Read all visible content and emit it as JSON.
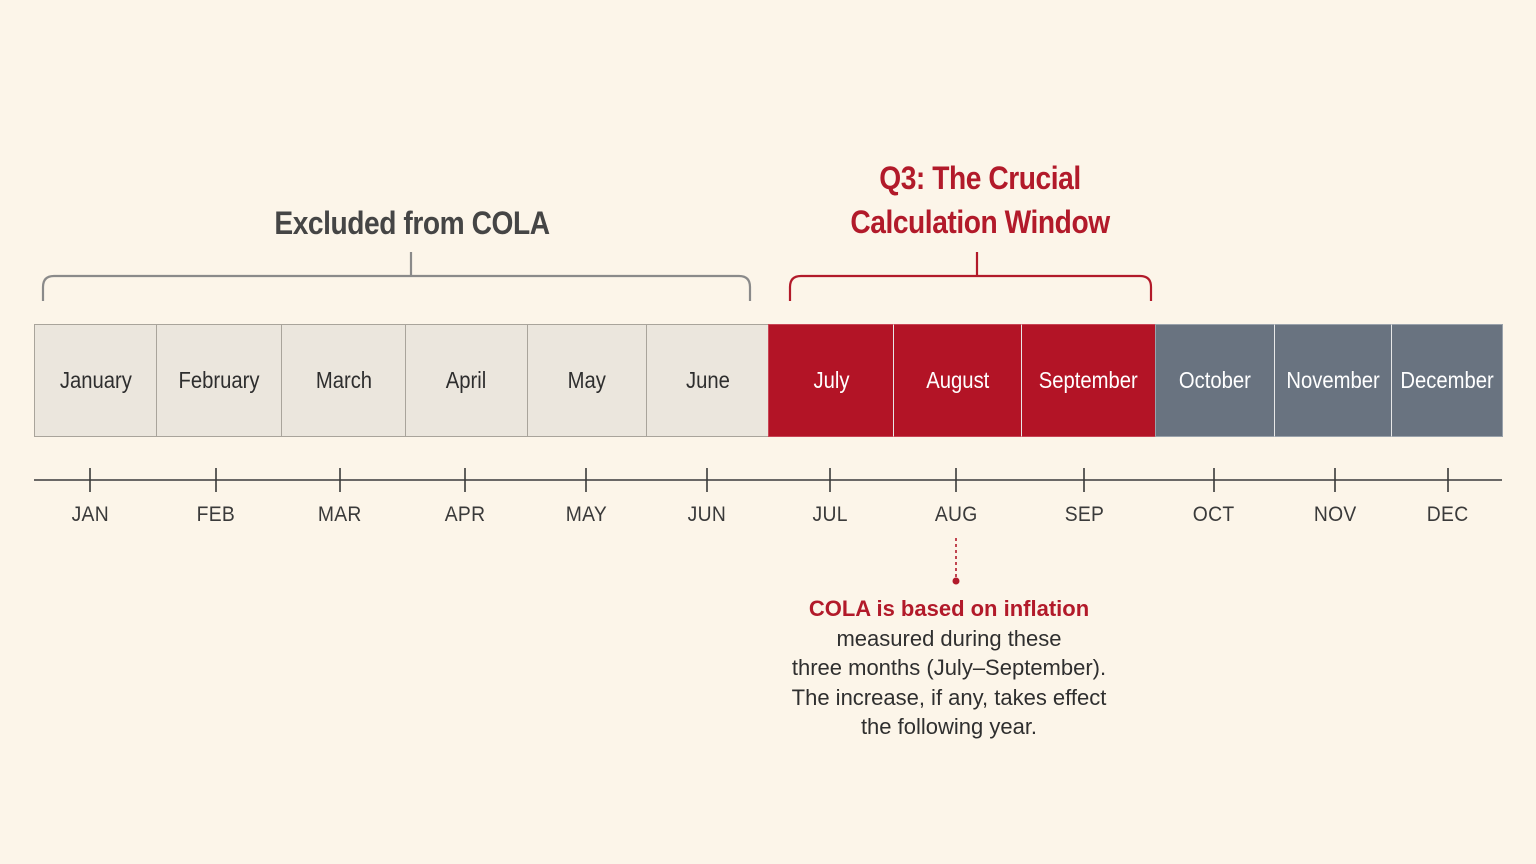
{
  "groups": {
    "excluded": {
      "label": "Excluded from COLA"
    },
    "q3": {
      "label_line1": "Q3: The Crucial",
      "label_line2": "Calculation Window"
    }
  },
  "months": [
    {
      "name": "January",
      "abbr": "JAN",
      "group": "excluded"
    },
    {
      "name": "February",
      "abbr": "FEB",
      "group": "excluded"
    },
    {
      "name": "March",
      "abbr": "MAR",
      "group": "excluded"
    },
    {
      "name": "April",
      "abbr": "APR",
      "group": "excluded"
    },
    {
      "name": "May",
      "abbr": "MAY",
      "group": "excluded"
    },
    {
      "name": "June",
      "abbr": "JUN",
      "group": "excluded"
    },
    {
      "name": "July",
      "abbr": "JUL",
      "group": "q3"
    },
    {
      "name": "August",
      "abbr": "AUG",
      "group": "q3"
    },
    {
      "name": "September",
      "abbr": "SEP",
      "group": "q3"
    },
    {
      "name": "October",
      "abbr": "OCT",
      "group": "q4"
    },
    {
      "name": "November",
      "abbr": "NOV",
      "group": "q4"
    },
    {
      "name": "December",
      "abbr": "DEC",
      "group": "q4"
    }
  ],
  "note": {
    "highlight": "COLA is based on inflation",
    "lines": [
      "measured during these",
      "three months (July–September).",
      "The increase, if any, takes effect",
      "the following year."
    ]
  },
  "colors": {
    "excluded_fill": "#ebe6dd",
    "q3_fill": "#b31426",
    "q4_fill": "#697380",
    "accent_red": "#b21a2a",
    "bracket_gray": "#8a8a8a"
  }
}
